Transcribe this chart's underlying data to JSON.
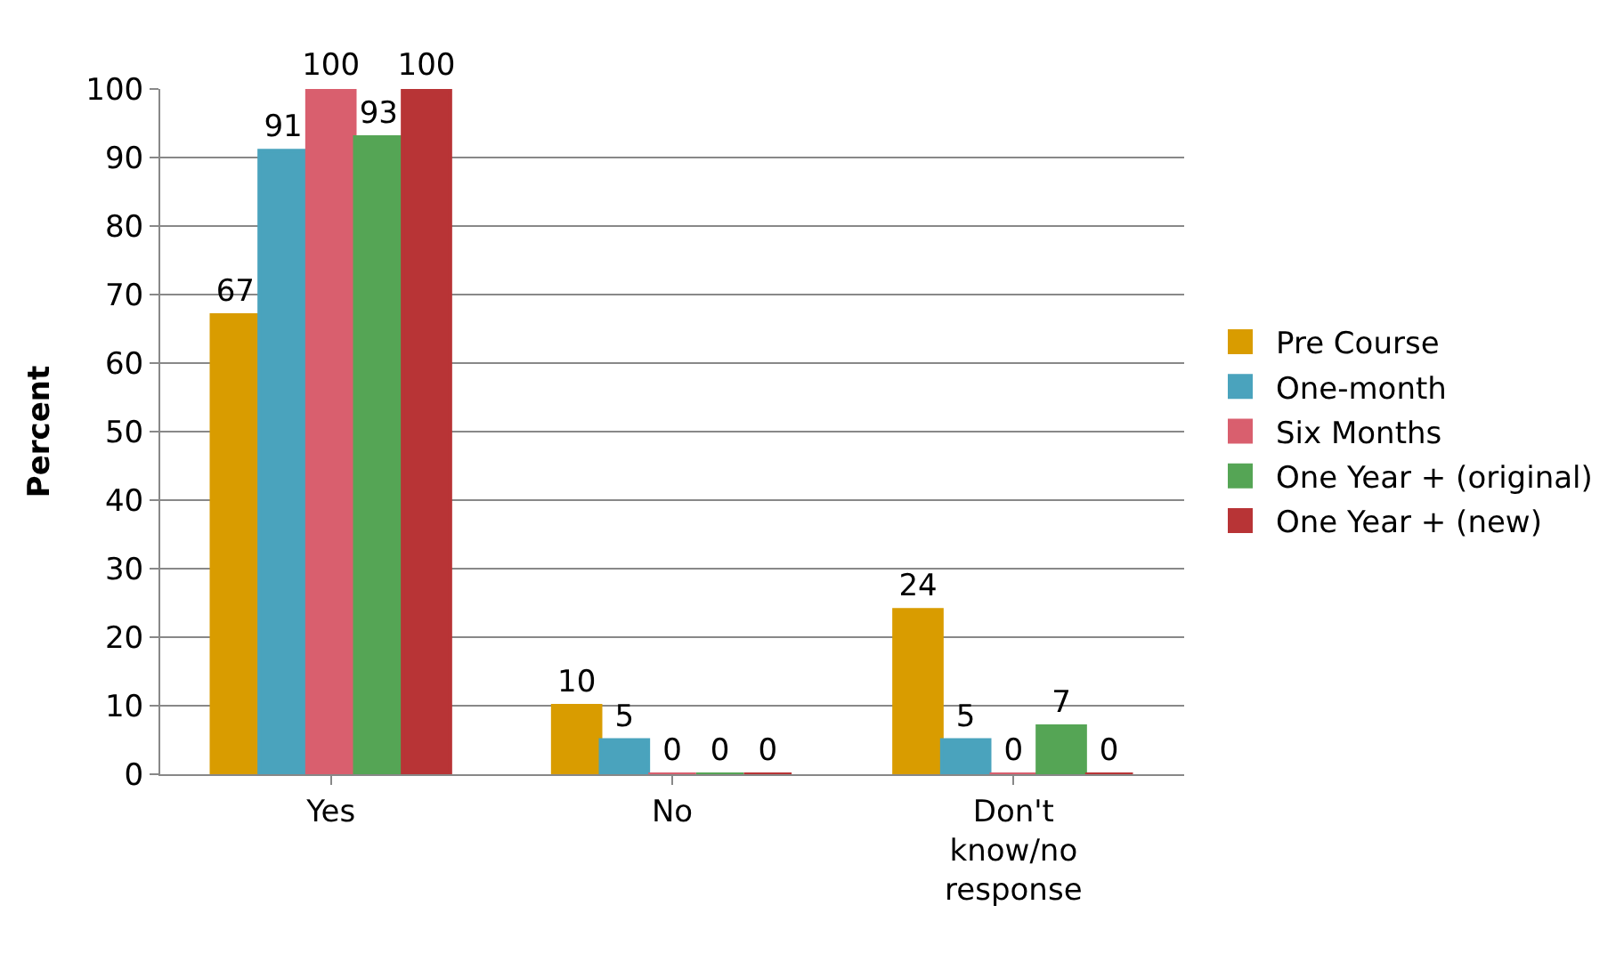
{
  "chart_data": {
    "type": "bar",
    "ylabel": "Percent",
    "categories": [
      "Yes",
      "No",
      "Don't know/no response"
    ],
    "series": [
      {
        "name": "Pre Course",
        "color": "#d99c00",
        "values": [
          67,
          10,
          24
        ]
      },
      {
        "name": "One-month",
        "color": "#4aa3bd",
        "values": [
          91,
          5,
          5
        ]
      },
      {
        "name": "Six Months",
        "color": "#d95f6e",
        "values": [
          100,
          0,
          0
        ]
      },
      {
        "name": "One Year + (original)",
        "color": "#55a555",
        "values": [
          93,
          0,
          7
        ]
      },
      {
        "name": "One Year + (new)",
        "color": "#b83436",
        "values": [
          100,
          0,
          0
        ]
      }
    ],
    "ylim": [
      0,
      100
    ],
    "yticks": [
      0,
      10,
      20,
      30,
      40,
      50,
      60,
      70,
      80,
      90,
      100
    ],
    "grid": "y",
    "legend": "right",
    "data_labels": true
  }
}
